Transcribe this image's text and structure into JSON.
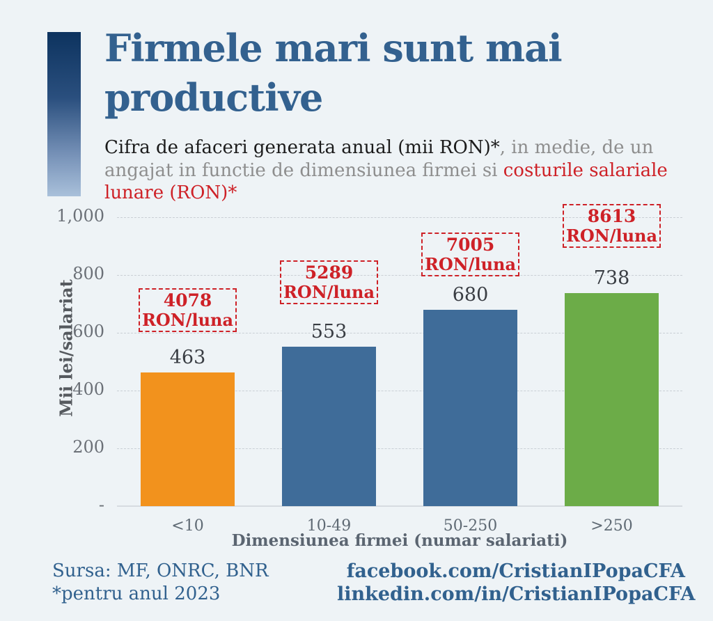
{
  "header": {
    "title_line1": "Firmele mari sunt mai",
    "title_line2": "productive",
    "subtitle_part1": "Cifra de afaceri generata anual (mii RON)*",
    "subtitle_part2": ", in medie, de un angajat in functie de dimensiunea firmei si ",
    "subtitle_part3": "costurile salariale lunare (RON)*"
  },
  "chart_data": {
    "type": "bar",
    "categories": [
      "<10",
      "10-49",
      "50-250",
      ">250"
    ],
    "values": [
      463,
      553,
      680,
      738
    ],
    "bar_colors": [
      "#F2921D",
      "#3F6C99",
      "#3F6C99",
      "#6CAC48"
    ],
    "salary_cost_labels": [
      {
        "amount": "4078",
        "unit": "RON/luna"
      },
      {
        "amount": "5289",
        "unit": "RON/luna"
      },
      {
        "amount": "7005",
        "unit": "RON/luna"
      },
      {
        "amount": "8613",
        "unit": "RON/luna"
      }
    ],
    "xlabel": "Dimensiunea firmei (numar salariati)",
    "ylabel": "Mii lei/salariat",
    "ylim": [
      0,
      1000
    ],
    "y_ticks": [
      {
        "label": "1,000",
        "value": 1000
      },
      {
        "label": "800",
        "value": 800
      },
      {
        "label": "600",
        "value": 600
      },
      {
        "label": "400",
        "value": 400
      },
      {
        "label": "200",
        "value": 200
      },
      {
        "label": "-",
        "value": 0
      }
    ],
    "grid": "horizontal dashed",
    "legend": "none"
  },
  "footer": {
    "source_line1": "Sursa: MF, ONRC, BNR",
    "source_line2": "*pentru anul 2023",
    "social_line1": "facebook.com/CristianIPopaCFA",
    "social_line2": "linkedin.com/in/CristianIPopaCFA"
  },
  "colors": {
    "background": "#EEF3F6",
    "title_blue": "#33618F",
    "annotation_red": "#CE2127",
    "bar_orange": "#F2921D",
    "bar_blue": "#3F6C99",
    "bar_green": "#6CAC48",
    "footer_blue": "#31618E"
  }
}
